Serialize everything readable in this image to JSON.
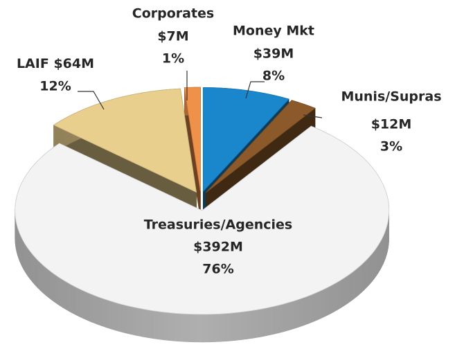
{
  "chart_data": {
    "type": "pie3d",
    "categories": [
      "Money Mkt",
      "Munis/Supras",
      "Treasuries/Agencies",
      "LAIF",
      "Corporates"
    ],
    "values": [
      39,
      12,
      392,
      64,
      7
    ],
    "value_labels": [
      "$39M",
      "$12M",
      "$392M",
      "$64M",
      "$7M"
    ],
    "percents": [
      8,
      3,
      76,
      12,
      1
    ],
    "percent_labels": [
      "8%",
      "3%",
      "76%",
      "12%",
      "1%"
    ],
    "colors": [
      "#1a86cb",
      "#8c5a2a",
      "#f3f3f3",
      "#e9cf8e",
      "#f0914a"
    ]
  }
}
